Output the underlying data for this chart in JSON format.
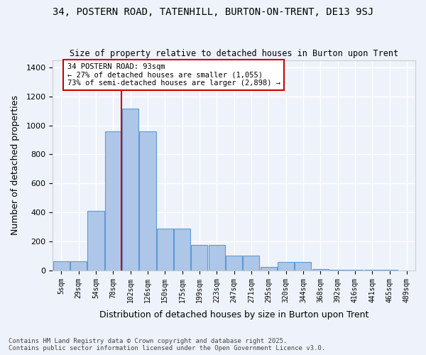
{
  "title": "34, POSTERN ROAD, TATENHILL, BURTON-ON-TRENT, DE13 9SJ",
  "subtitle": "Size of property relative to detached houses in Burton upon Trent",
  "xlabel": "Distribution of detached houses by size in Burton upon Trent",
  "ylabel": "Number of detached properties",
  "categories": [
    "5sqm",
    "29sqm",
    "54sqm",
    "78sqm",
    "102sqm",
    "126sqm",
    "150sqm",
    "175sqm",
    "199sqm",
    "223sqm",
    "247sqm",
    "271sqm",
    "295sqm",
    "320sqm",
    "344sqm",
    "368sqm",
    "392sqm",
    "416sqm",
    "441sqm",
    "465sqm",
    "489sqm"
  ],
  "values": [
    65,
    65,
    410,
    960,
    1115,
    960,
    290,
    290,
    175,
    175,
    100,
    100,
    25,
    60,
    60,
    10,
    6,
    6,
    5,
    3,
    2
  ],
  "bar_color": "#aec6e8",
  "bar_edge_color": "#5b9bd5",
  "background_color": "#eef3fb",
  "grid_color": "#ffffff",
  "vline_x": 4,
  "vline_color": "#cc0000",
  "annotation_text": "34 POSTERN ROAD: 93sqm\n← 27% of detached houses are smaller (1,055)\n73% of semi-detached houses are larger (2,898) →",
  "annotation_box_color": "#cc0000",
  "ylim": [
    0,
    1450
  ],
  "yticks": [
    0,
    200,
    400,
    600,
    800,
    1000,
    1200,
    1400
  ],
  "footer": "Contains HM Land Registry data © Crown copyright and database right 2025.\nContains public sector information licensed under the Open Government Licence v3.0.",
  "figsize": [
    6.0,
    5.0
  ],
  "dpi": 100
}
